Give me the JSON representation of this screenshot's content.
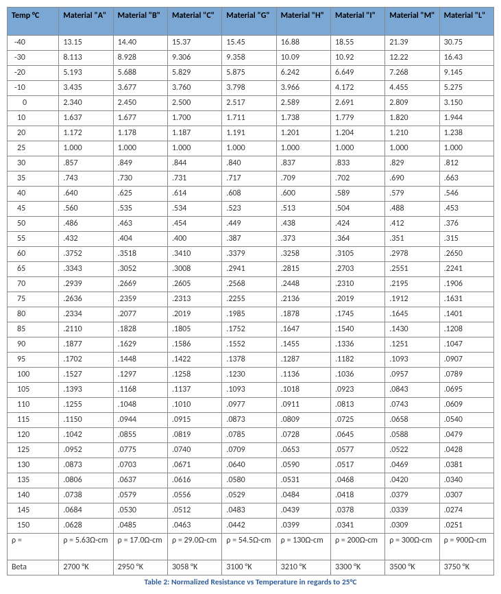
{
  "caption": "Table 2: Normalized Resistance vs Temperature in regards to 25°C",
  "columns": [
    "Temp °C",
    "Material \"A\"",
    "Material \"B\"",
    "Material \"C\"",
    "Material \"G\"",
    "Material \"H\"",
    "Material \"I\"",
    "Material \"M\"",
    "Material \"L\""
  ],
  "temps": [
    "-40",
    "-30",
    "-20",
    "-10",
    "0",
    "10",
    "20",
    "25",
    "30",
    "35",
    "40",
    "45",
    "50",
    "55",
    "60",
    "65",
    "70",
    "75",
    "80",
    "85",
    "90",
    "95",
    "100",
    "105",
    "110",
    "115",
    "120",
    "125",
    "130",
    "135",
    "140",
    "145",
    "150"
  ],
  "rows": [
    [
      "13.15",
      "14.40",
      "15.37",
      "15.45",
      "16.88",
      "18.55",
      "21.39",
      "30.75"
    ],
    [
      "8.113",
      "8.928",
      "9.306",
      "9.358",
      "10.09",
      "10.92",
      "12.22",
      "16.43"
    ],
    [
      "5.193",
      "5.688",
      "5.829",
      "5.875",
      "6.242",
      "6.649",
      "7.268",
      "9.145"
    ],
    [
      "3.435",
      "3.677",
      "3.760",
      "3.798",
      "3.966",
      "4.172",
      "4.455",
      "5.275"
    ],
    [
      "2.340",
      "2.450",
      "2.500",
      "2.517",
      "2.589",
      "2.691",
      "2.809",
      "3.150"
    ],
    [
      "1.637",
      "1.677",
      "1.700",
      "1.711",
      "1.738",
      "1.779",
      "1.820",
      "1.944"
    ],
    [
      "1.172",
      "1.178",
      "1.187",
      "1.191",
      "1.201",
      "1.204",
      "1.210",
      "1.238"
    ],
    [
      "1.000",
      "1.000",
      "1.000",
      "1.000",
      "1.000",
      "1.000",
      "1.000",
      "1.000"
    ],
    [
      ".857",
      ".849",
      ".844",
      ".840",
      ".837",
      ".833",
      ".829",
      ".812"
    ],
    [
      ".743",
      ".730",
      ".731",
      ".717",
      ".709",
      ".702",
      ".690",
      ".663"
    ],
    [
      ".640",
      ".625",
      ".614",
      ".608",
      ".600",
      ".589",
      ".579",
      ".546"
    ],
    [
      ".560",
      ".535",
      ".534",
      ".523",
      ".513",
      ".504",
      ".488",
      ".453"
    ],
    [
      ".486",
      ".463",
      ".454",
      ".449",
      ".438",
      ".424",
      ".412",
      ".376"
    ],
    [
      ".432",
      ".404",
      ".400",
      ".387",
      ".373",
      ".364",
      ".351",
      ".315"
    ],
    [
      ".3752",
      ".3518",
      ".3410",
      ".3379",
      ".3258",
      ".3105",
      ".2978",
      ".2650"
    ],
    [
      ".3343",
      ".3052",
      ".3008",
      ".2941",
      ".2815",
      ".2703",
      ".2551",
      ".2241"
    ],
    [
      ".2939",
      ".2669",
      ".2605",
      ".2568",
      ".2448",
      ".2310",
      ".2195",
      ".1906"
    ],
    [
      ".2636",
      ".2359",
      ".2313",
      ".2255",
      ".2136",
      ".2019",
      ".1912",
      ".1631"
    ],
    [
      ".2334",
      ".2077",
      ".2019",
      ".1985",
      ".1878",
      ".1745",
      ".1645",
      ".1401"
    ],
    [
      ".2110",
      ".1828",
      ".1805",
      ".1752",
      ".1647",
      ".1540",
      ".1430",
      ".1208"
    ],
    [
      ".1877",
      ".1629",
      ".1586",
      ".1552",
      ".1455",
      ".1336",
      ".1251",
      ".1047"
    ],
    [
      ".1702",
      ".1448",
      ".1422",
      ".1378",
      ".1287",
      ".1182",
      ".1093",
      ".0907"
    ],
    [
      ".1527",
      ".1297",
      ".1258",
      ".1230",
      ".1136",
      ".1036",
      ".0957",
      ".0789"
    ],
    [
      ".1393",
      ".1168",
      ".1137",
      ".1093",
      ".1018",
      ".0923",
      ".0843",
      ".0695"
    ],
    [
      ".1255",
      ".1048",
      ".1010",
      ".0977",
      ".0911",
      ".0813",
      ".0743",
      ".0609"
    ],
    [
      ".1150",
      ".0944",
      ".0915",
      ".0873",
      ".0809",
      ".0725",
      ".0658",
      ".0540"
    ],
    [
      ".1042",
      ".0855",
      ".0819",
      ".0785",
      ".0728",
      ".0645",
      ".0588",
      ".0479"
    ],
    [
      ".0952",
      ".0775",
      ".0740",
      ".0709",
      ".0653",
      ".0577",
      ".0522",
      ".0428"
    ],
    [
      ".0873",
      ".0703",
      ".0671",
      ".0640",
      ".0590",
      ".0517",
      ".0469",
      ".0381"
    ],
    [
      ".0806",
      ".0637",
      ".0616",
      ".0580",
      ".0531",
      ".0468",
      ".0420",
      ".0340"
    ],
    [
      ".0738",
      ".0579",
      ".0556",
      ".0529",
      ".0484",
      ".0418",
      ".0379",
      ".0307"
    ],
    [
      ".0684",
      ".0530",
      ".0512",
      ".0483",
      ".0439",
      ".0378",
      ".0339",
      ".0274"
    ],
    [
      ".0628",
      ".0485",
      ".0463",
      ".0442",
      ".0399",
      ".0341",
      ".0309",
      ".0251"
    ]
  ],
  "rho_label": "ρ =",
  "rho": [
    "ρ = 5.63Ω-cm",
    "ρ = 17.0Ω-cm",
    "ρ = 29.0Ω-cm",
    "ρ = 54.5Ω-cm",
    "ρ = 130Ω-cm",
    "ρ = 200Ω-cm",
    "ρ = 300Ω-cm",
    "ρ = 900Ω-cm"
  ],
  "beta_label": "Beta",
  "beta": [
    "2700 °K",
    "2950 °K",
    "3058 °K",
    "3100 °K",
    "3210 °K",
    "3300 °K",
    "3500 °K",
    "3750 °K"
  ]
}
